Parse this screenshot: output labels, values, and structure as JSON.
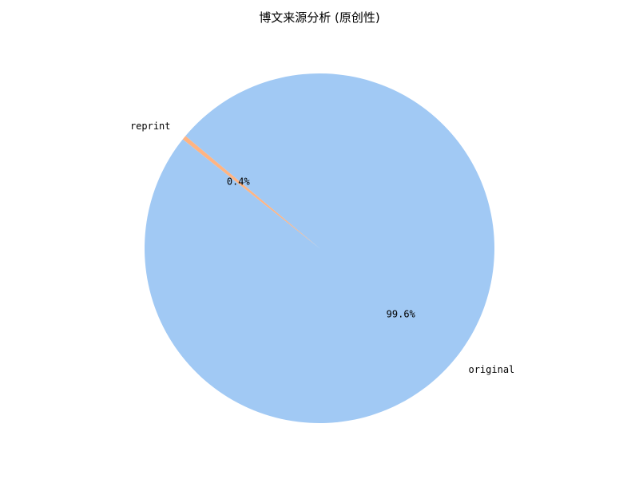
{
  "chart_data": {
    "type": "pie",
    "title": "博文来源分析 (原创性)",
    "slices": [
      {
        "label": "reprint",
        "value": 0.4,
        "percent_label": "0.4%",
        "color": "#ffb482"
      },
      {
        "label": "original",
        "value": 99.6,
        "percent_label": "99.6%",
        "color": "#a1c9f4"
      }
    ]
  }
}
